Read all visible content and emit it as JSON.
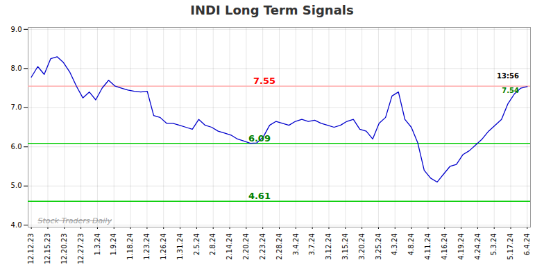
{
  "chart_data": {
    "type": "line",
    "title": "INDI Long Term Signals",
    "x": [
      0,
      1,
      2,
      3,
      4,
      5,
      6,
      7,
      8,
      9,
      10,
      11,
      12,
      13,
      14,
      15,
      16,
      17,
      18,
      19,
      20,
      21,
      22,
      23,
      24,
      25,
      26,
      27,
      28,
      29,
      30,
      31,
      32,
      33,
      34,
      35,
      36,
      37,
      38,
      39,
      40,
      41,
      42,
      43,
      44,
      45,
      46,
      47,
      48,
      49,
      50,
      51,
      52,
      53,
      54,
      55,
      56,
      57,
      58,
      59,
      60,
      61,
      62,
      63,
      64,
      65,
      66,
      67,
      68,
      69,
      70,
      71,
      72,
      73,
      74,
      75,
      76,
      77
    ],
    "values": [
      7.78,
      8.05,
      7.85,
      8.25,
      8.3,
      8.15,
      7.9,
      7.55,
      7.25,
      7.4,
      7.2,
      7.5,
      7.7,
      7.55,
      7.5,
      7.45,
      7.42,
      7.4,
      7.42,
      6.8,
      6.75,
      6.6,
      6.6,
      6.55,
      6.5,
      6.45,
      6.7,
      6.55,
      6.5,
      6.4,
      6.35,
      6.3,
      6.2,
      6.15,
      6.09,
      6.1,
      6.25,
      6.55,
      6.65,
      6.6,
      6.55,
      6.65,
      6.7,
      6.65,
      6.68,
      6.6,
      6.55,
      6.5,
      6.55,
      6.65,
      6.7,
      6.45,
      6.4,
      6.2,
      6.6,
      6.75,
      7.3,
      7.4,
      6.7,
      6.5,
      6.1,
      5.4,
      5.2,
      5.1,
      5.3,
      5.5,
      5.55,
      5.8,
      5.9,
      6.05,
      6.2,
      6.4,
      6.55,
      6.7,
      7.1,
      7.35,
      7.5,
      7.54
    ],
    "color": "#0000cc",
    "xlim": [
      -0.5,
      77.5
    ],
    "xticks": [
      {
        "value": 0,
        "label": "12.12.23"
      },
      {
        "value": 2.5667,
        "label": "12.15.23"
      },
      {
        "value": 5.1333,
        "label": "12.20.23"
      },
      {
        "value": 7.7,
        "label": "12.27.23"
      },
      {
        "value": 10.2667,
        "label": "1.3.24"
      },
      {
        "value": 12.8333,
        "label": "1.9.24"
      },
      {
        "value": 15.4,
        "label": "1.18.24"
      },
      {
        "value": 17.9667,
        "label": "1.23.24"
      },
      {
        "value": 20.5333,
        "label": "1.26.24"
      },
      {
        "value": 23.1,
        "label": "1.31.24"
      },
      {
        "value": 25.6667,
        "label": "2.5.24"
      },
      {
        "value": 28.2333,
        "label": "2.8.24"
      },
      {
        "value": 30.8,
        "label": "2.14.24"
      },
      {
        "value": 33.3667,
        "label": "2.20.24"
      },
      {
        "value": 35.9333,
        "label": "2.23.24"
      },
      {
        "value": 38.5,
        "label": "2.28.24"
      },
      {
        "value": 41.0667,
        "label": "3.4.24"
      },
      {
        "value": 43.6333,
        "label": "3.7.24"
      },
      {
        "value": 46.2,
        "label": "3.12.24"
      },
      {
        "value": 48.7667,
        "label": "3.15.24"
      },
      {
        "value": 51.3333,
        "label": "3.20.24"
      },
      {
        "value": 53.9,
        "label": "3.25.24"
      },
      {
        "value": 56.4667,
        "label": "4.3.24"
      },
      {
        "value": 59.0333,
        "label": "4.8.24"
      },
      {
        "value": 61.6,
        "label": "4.11.24"
      },
      {
        "value": 64.1667,
        "label": "4.16.24"
      },
      {
        "value": 66.7333,
        "label": "4.19.24"
      },
      {
        "value": 69.3,
        "label": "4.24.24"
      },
      {
        "value": 71.8667,
        "label": "5.3.24"
      },
      {
        "value": 74.4333,
        "label": "5.17.24"
      },
      {
        "value": 77,
        "label": "6.4.24"
      }
    ],
    "ylim": [
      3.95,
      9.05
    ],
    "yticks": [
      4,
      5,
      6,
      7,
      8,
      9
    ],
    "grid": true,
    "hlines": [
      {
        "value": 7.55,
        "color": "#ffaaaa",
        "label": "7.55",
        "label_color": "red"
      },
      {
        "value": 6.09,
        "color": "#00cc00",
        "label": "6.09",
        "label_color": "green"
      },
      {
        "value": 4.61,
        "color": "#00cc00",
        "label": "4.61",
        "label_color": "green"
      }
    ],
    "annotations": [
      {
        "text": "13:56",
        "color": "black"
      },
      {
        "text": "7.54",
        "color": "green"
      }
    ],
    "watermark": "Stock Traders Daily"
  }
}
